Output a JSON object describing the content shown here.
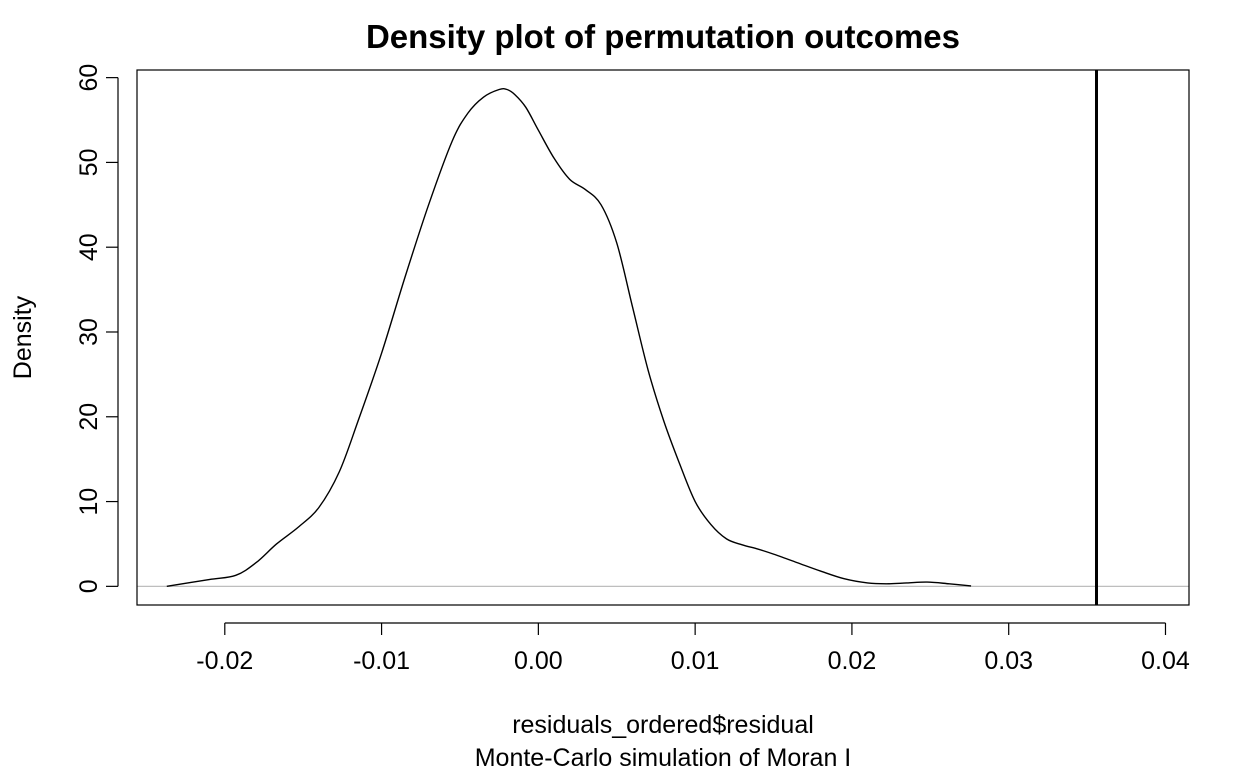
{
  "chart_data": {
    "type": "line",
    "title": "Density plot of permutation outcomes",
    "xlabel": "residuals_ordered$residual",
    "sub": "Monte-Carlo simulation of Moran I",
    "ylabel": "Density",
    "xlim": [
      -0.0256,
      0.0415
    ],
    "ylim": [
      -2.2,
      60.9
    ],
    "x_ticks": [
      {
        "value": -0.02,
        "label": "-0.02"
      },
      {
        "value": -0.01,
        "label": "-0.01"
      },
      {
        "value": 0.0,
        "label": "0.00"
      },
      {
        "value": 0.01,
        "label": "0.01"
      },
      {
        "value": 0.02,
        "label": "0.02"
      },
      {
        "value": 0.03,
        "label": "0.03"
      },
      {
        "value": 0.04,
        "label": "0.04"
      }
    ],
    "y_ticks": [
      {
        "value": 0,
        "label": "0"
      },
      {
        "value": 10,
        "label": "10"
      },
      {
        "value": 20,
        "label": "20"
      },
      {
        "value": 30,
        "label": "30"
      },
      {
        "value": 40,
        "label": "40"
      },
      {
        "value": 50,
        "label": "50"
      },
      {
        "value": 60,
        "label": "60"
      }
    ],
    "zero_line": {
      "y": 0,
      "color": "#bebebe"
    },
    "vertical_line": {
      "x": 0.0356,
      "color": "#000000"
    },
    "grid": false,
    "series": [
      {
        "color": "#000000",
        "x": [
          -0.0237,
          -0.021,
          -0.0193,
          -0.018,
          -0.0167,
          -0.0153,
          -0.014,
          -0.0127,
          -0.0115,
          -0.01,
          -0.0085,
          -0.007,
          -0.0055,
          -0.0045,
          -0.0035,
          -0.0025,
          -0.002,
          -0.0015,
          -0.0008,
          0.0,
          0.001,
          0.002,
          0.003,
          0.004,
          0.005,
          0.006,
          0.007,
          0.008,
          0.009,
          0.01,
          0.011,
          0.012,
          0.013,
          0.014,
          0.015,
          0.0165,
          0.018,
          0.0195,
          0.021,
          0.0222,
          0.0235,
          0.0248,
          0.0262,
          0.0276
        ],
        "y": [
          0.0,
          0.8,
          1.3,
          2.8,
          5.0,
          7.0,
          9.3,
          13.5,
          19.5,
          27.5,
          36.5,
          45.0,
          52.5,
          55.8,
          57.7,
          58.6,
          58.6,
          58.0,
          56.5,
          53.8,
          50.5,
          48.0,
          46.8,
          45.0,
          40.5,
          33.0,
          25.5,
          19.5,
          14.5,
          10.0,
          7.3,
          5.6,
          4.9,
          4.4,
          3.8,
          2.8,
          1.8,
          0.9,
          0.4,
          0.3,
          0.4,
          0.5,
          0.3,
          0.05
        ]
      }
    ]
  }
}
